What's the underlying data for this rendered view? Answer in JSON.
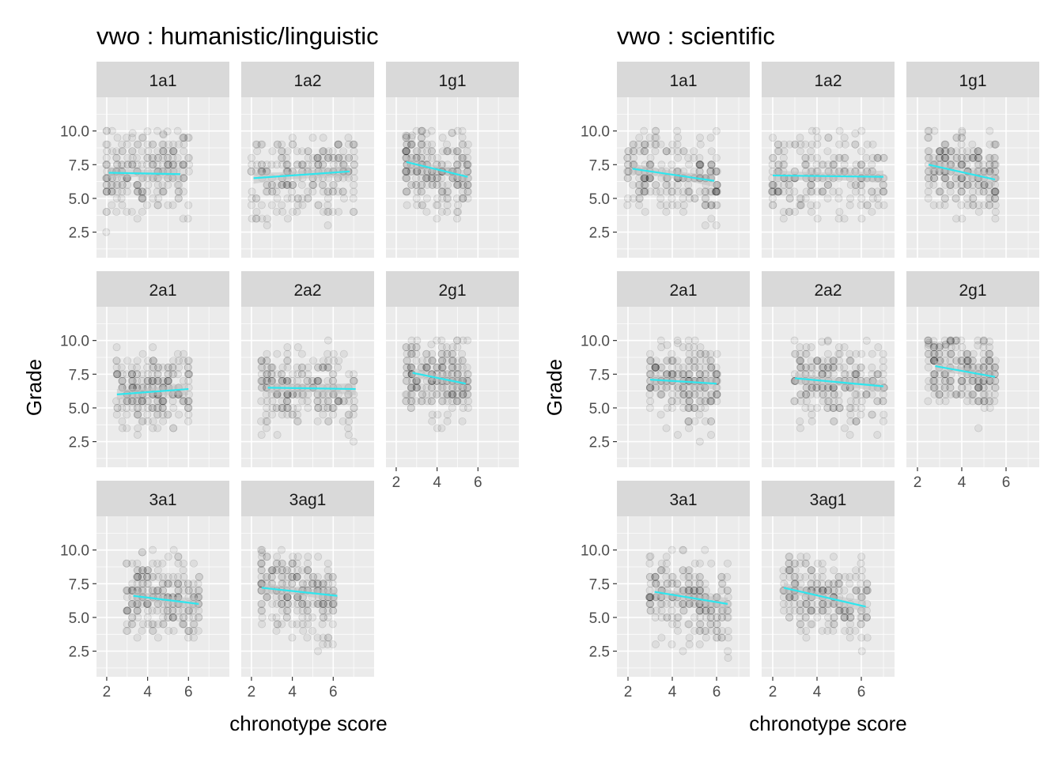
{
  "figure": {
    "y_label": "Grade",
    "x_label": "chronotype score",
    "colors": {
      "panel_bg": "#ebebeb",
      "strip_bg": "#d9d9d9",
      "grid": "#ffffff",
      "point": "#000000",
      "fit_line": "#2ee6ee",
      "ci_band": "#bfbfbf",
      "text": "#000000",
      "tick_text": "#4d4d4d"
    }
  },
  "chart_data": [
    {
      "type": "scatter",
      "title": "vwo : humanistic/linguistic",
      "xlabel": "chronotype score",
      "ylabel": "Grade",
      "xlim": [
        1.5,
        8.0
      ],
      "ylim": [
        0.6,
        12.5
      ],
      "x_ticks": [
        "2",
        "4",
        "6"
      ],
      "y_ticks": [
        "2.5",
        "5.0",
        "7.5",
        "10.0"
      ],
      "grid": true,
      "point_style": "semi-transparent grey circles with a linear fit line and confidence band",
      "facets": [
        {
          "name": "1a1",
          "x_range": [
            2.0,
            6.0
          ],
          "fit": {
            "x": [
              2.1,
              5.6
            ],
            "y": [
              6.9,
              6.8
            ]
          }
        },
        {
          "name": "1a2",
          "x_range": [
            2.0,
            7.0
          ],
          "fit": {
            "x": [
              2.1,
              6.8
            ],
            "y": [
              6.5,
              7.0
            ]
          }
        },
        {
          "name": "1g1",
          "x_range": [
            2.5,
            5.5
          ],
          "fit": {
            "x": [
              2.5,
              5.5
            ],
            "y": [
              7.7,
              6.6
            ]
          }
        },
        {
          "name": "2a1",
          "x_range": [
            2.5,
            6.0
          ],
          "fit": {
            "x": [
              2.5,
              6.0
            ],
            "y": [
              6.0,
              6.4
            ]
          }
        },
        {
          "name": "2a2",
          "x_range": [
            2.5,
            7.0
          ],
          "fit": {
            "x": [
              2.8,
              7.1
            ],
            "y": [
              6.5,
              6.4
            ]
          }
        },
        {
          "name": "2g1",
          "x_range": [
            2.5,
            5.5
          ],
          "fit": {
            "x": [
              2.8,
              5.4
            ],
            "y": [
              7.6,
              6.8
            ]
          }
        },
        {
          "name": "3a1",
          "x_range": [
            3.0,
            6.5
          ],
          "fit": {
            "x": [
              3.3,
              6.5
            ],
            "y": [
              6.6,
              6.0
            ]
          }
        },
        {
          "name": "3ag1",
          "x_range": [
            2.5,
            6.0
          ],
          "fit": {
            "x": [
              2.5,
              6.2
            ],
            "y": [
              7.2,
              6.6
            ]
          }
        }
      ]
    },
    {
      "type": "scatter",
      "title": "vwo : scientific",
      "xlabel": "chronotype score",
      "ylabel": "Grade",
      "xlim": [
        1.5,
        7.5
      ],
      "ylim": [
        0.6,
        12.5
      ],
      "x_ticks": [
        "2",
        "4",
        "6"
      ],
      "y_ticks": [
        "2.5",
        "5.0",
        "7.5",
        "10.0"
      ],
      "grid": true,
      "point_style": "semi-transparent grey circles with a linear fit line and confidence band",
      "facets": [
        {
          "name": "1a1",
          "x_range": [
            2.0,
            6.0
          ],
          "fit": {
            "x": [
              2.2,
              5.9
            ],
            "y": [
              7.2,
              6.3
            ]
          }
        },
        {
          "name": "1a2",
          "x_range": [
            2.0,
            7.0
          ],
          "fit": {
            "x": [
              2.0,
              7.0
            ],
            "y": [
              6.7,
              6.6
            ]
          }
        },
        {
          "name": "1g1",
          "x_range": [
            2.5,
            5.5
          ],
          "fit": {
            "x": [
              2.5,
              5.5
            ],
            "y": [
              7.5,
              6.4
            ]
          }
        },
        {
          "name": "2a1",
          "x_range": [
            3.0,
            6.0
          ],
          "fit": {
            "x": [
              3.0,
              6.0
            ],
            "y": [
              7.1,
              6.8
            ]
          }
        },
        {
          "name": "2a2",
          "x_range": [
            3.0,
            7.0
          ],
          "fit": {
            "x": [
              3.0,
              7.0
            ],
            "y": [
              7.2,
              6.6
            ]
          }
        },
        {
          "name": "2g1",
          "x_range": [
            2.5,
            5.5
          ],
          "fit": {
            "x": [
              2.8,
              5.5
            ],
            "y": [
              8.1,
              7.3
            ]
          }
        },
        {
          "name": "3a1",
          "x_range": [
            3.0,
            6.5
          ],
          "fit": {
            "x": [
              3.2,
              6.5
            ],
            "y": [
              6.9,
              6.0
            ]
          }
        },
        {
          "name": "3ag1",
          "x_range": [
            2.5,
            6.2
          ],
          "fit": {
            "x": [
              2.5,
              6.2
            ],
            "y": [
              7.2,
              5.8
            ]
          }
        }
      ]
    }
  ]
}
